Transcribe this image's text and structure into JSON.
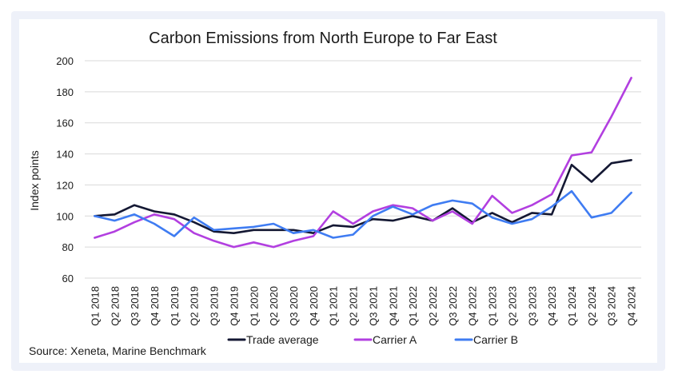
{
  "chart_data": {
    "type": "line",
    "title": "Carbon Emissions from North Europe to Far East",
    "ylabel": "Index points",
    "xlabel": "",
    "ylim": [
      60,
      200
    ],
    "yticks": [
      60,
      80,
      100,
      120,
      140,
      160,
      180,
      200
    ],
    "grid": "horizontal",
    "legend_position": "bottom",
    "categories": [
      "Q1 2018",
      "Q2 2018",
      "Q3 2018",
      "Q4 2018",
      "Q1 2019",
      "Q2 2019",
      "Q3 2019",
      "Q4 2019",
      "Q1 2020",
      "Q2 2020",
      "Q3 2020",
      "Q4 2020",
      "Q1 2021",
      "Q2 2021",
      "Q3 2021",
      "Q4 2021",
      "Q1 2022",
      "Q2 2022",
      "Q3 2022",
      "Q4 2022",
      "Q1 2023",
      "Q2 2023",
      "Q3 2023",
      "Q4 2023",
      "Q1 2024",
      "Q2 2024",
      "Q3 2024",
      "Q4 2024"
    ],
    "series": [
      {
        "name": "Trade average",
        "color": "#141833",
        "values": [
          100,
          101,
          107,
          103,
          101,
          96,
          90,
          89,
          91,
          91,
          91,
          89,
          94,
          93,
          98,
          97,
          100,
          97,
          105,
          96,
          102,
          96,
          102,
          101,
          133,
          122,
          134,
          136
        ]
      },
      {
        "name": "Carrier A",
        "color": "#b23fe0",
        "values": [
          86,
          90,
          96,
          101,
          98,
          89,
          84,
          80,
          83,
          80,
          84,
          87,
          103,
          95,
          103,
          107,
          105,
          97,
          103,
          95,
          113,
          102,
          107,
          114,
          139,
          141,
          164,
          189
        ]
      },
      {
        "name": "Carrier B",
        "color": "#3f7cf2",
        "values": [
          100,
          97,
          101,
          95,
          87,
          99,
          91,
          92,
          93,
          95,
          89,
          91,
          86,
          88,
          100,
          106,
          101,
          107,
          110,
          108,
          99,
          95,
          98,
          106,
          116,
          99,
          102,
          115
        ]
      }
    ],
    "source": "Source: Xeneta, Marine Benchmark"
  }
}
